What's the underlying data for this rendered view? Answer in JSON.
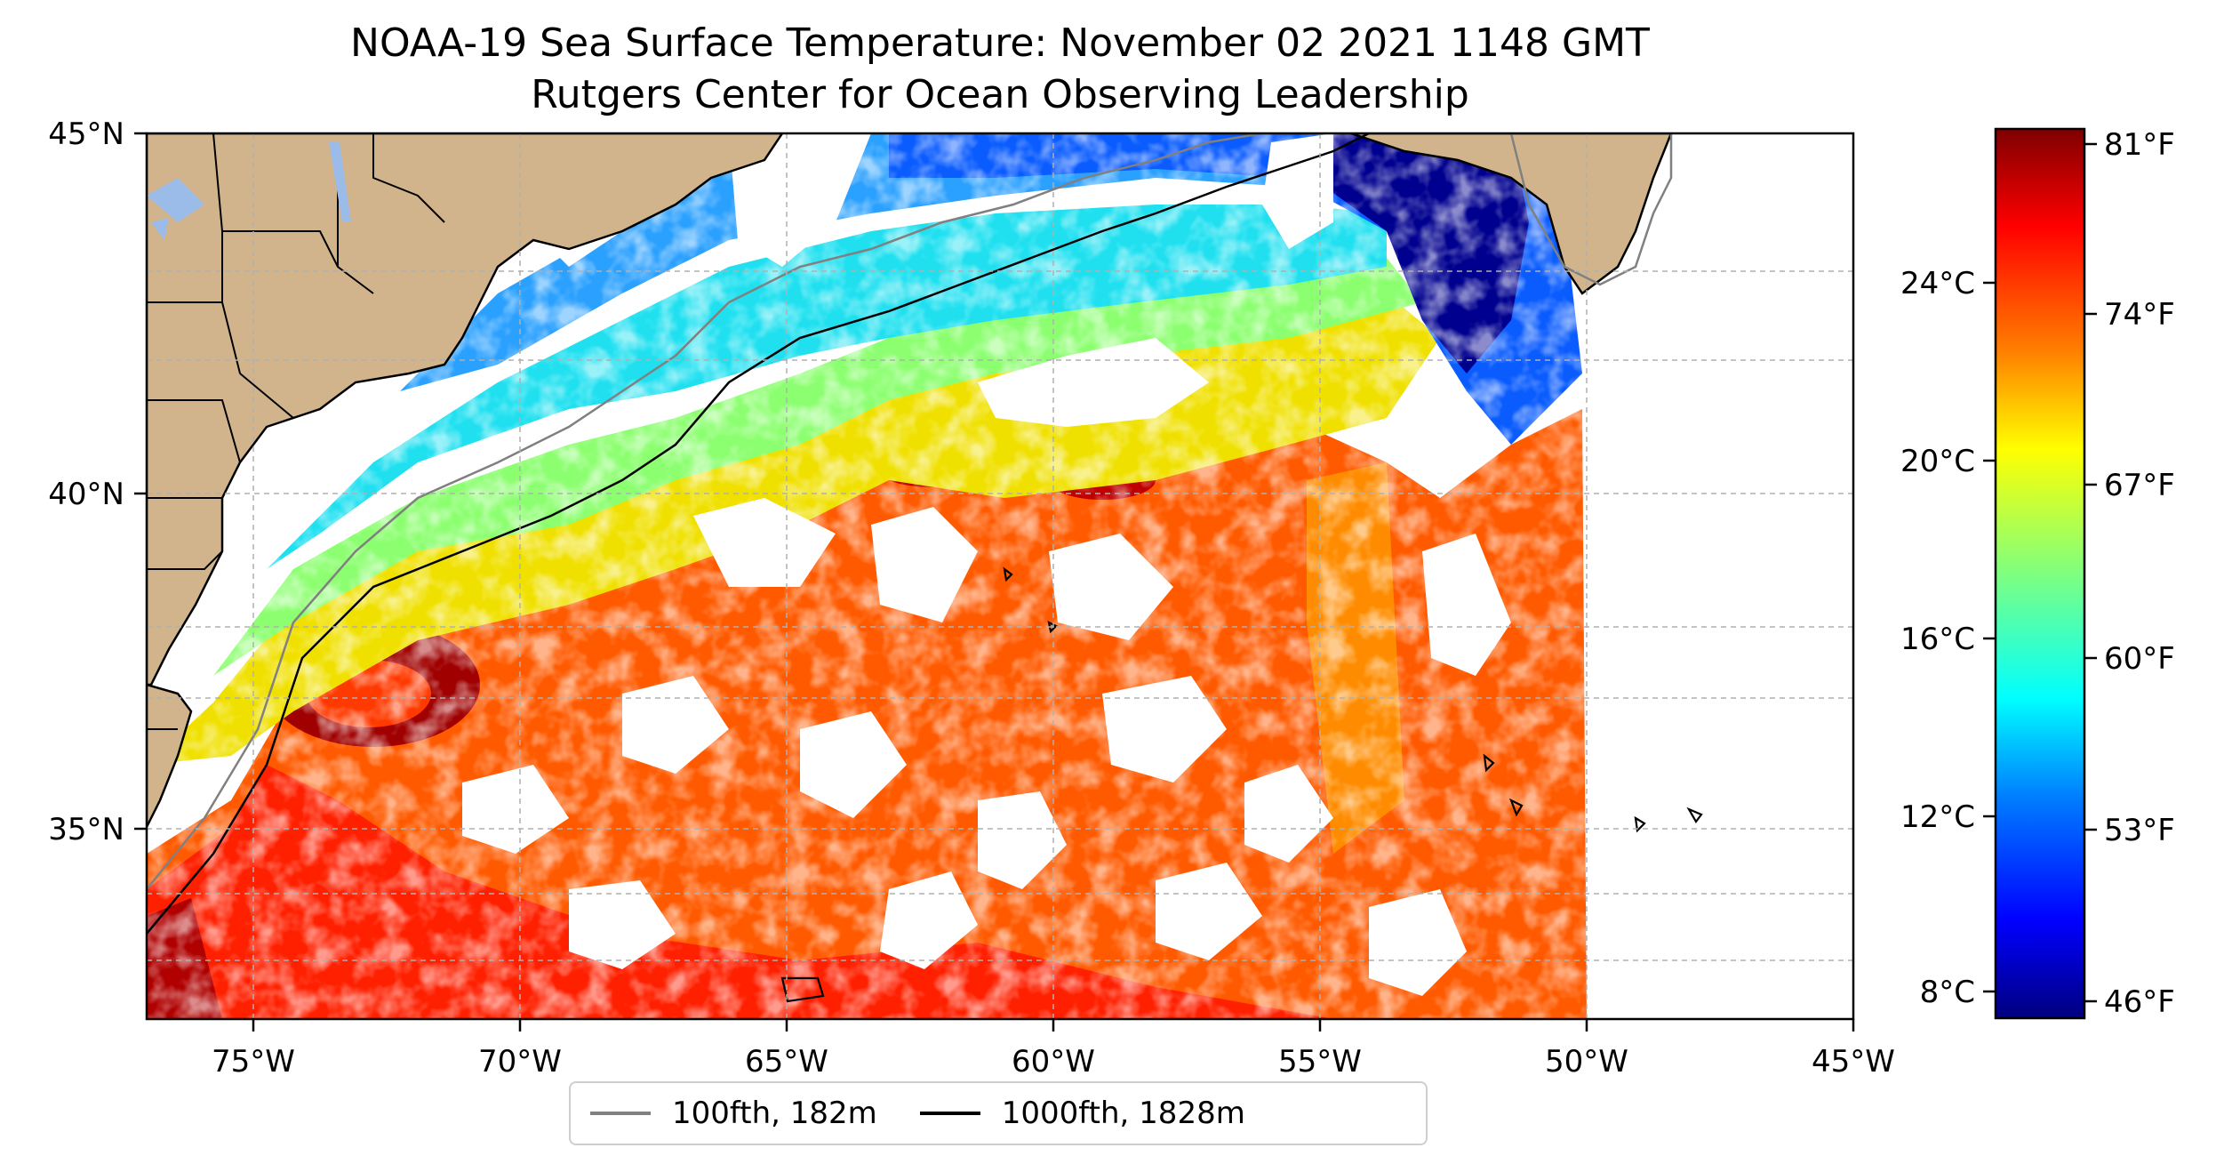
{
  "title": "NOAA-19 Sea Surface Temperature: November 02 2021 1148 GMT",
  "subtitle": "Rutgers Center for Ocean Observing Leadership",
  "map": {
    "x_ticks": [
      "75°W",
      "70°W",
      "65°W",
      "60°W",
      "55°W",
      "50°W",
      "45°W"
    ],
    "y_ticks": [
      "45°N",
      "40°N",
      "35°N"
    ],
    "gridlines": true,
    "land_color": "#d2b48c",
    "lakes_color": "#9bbbe8"
  },
  "colorbar": {
    "celsius_ticks": [
      "24°C",
      "20°C",
      "16°C",
      "12°C",
      "8°C"
    ],
    "fahrenheit_ticks": [
      "81°F",
      "74°F",
      "67°F",
      "60°F",
      "53°F",
      "46°F"
    ],
    "colormap": [
      "#00007f",
      "#0000ff",
      "#007fff",
      "#00ffff",
      "#7fff7f",
      "#ffff00",
      "#ff7f00",
      "#ff0000",
      "#7f0000"
    ]
  },
  "legend": {
    "items": [
      {
        "label": "100fth, 182m",
        "color": "#808080"
      },
      {
        "label": "1000fth, 1828m",
        "color": "#000000"
      }
    ]
  },
  "cloud_cover_color": "#ffffff"
}
